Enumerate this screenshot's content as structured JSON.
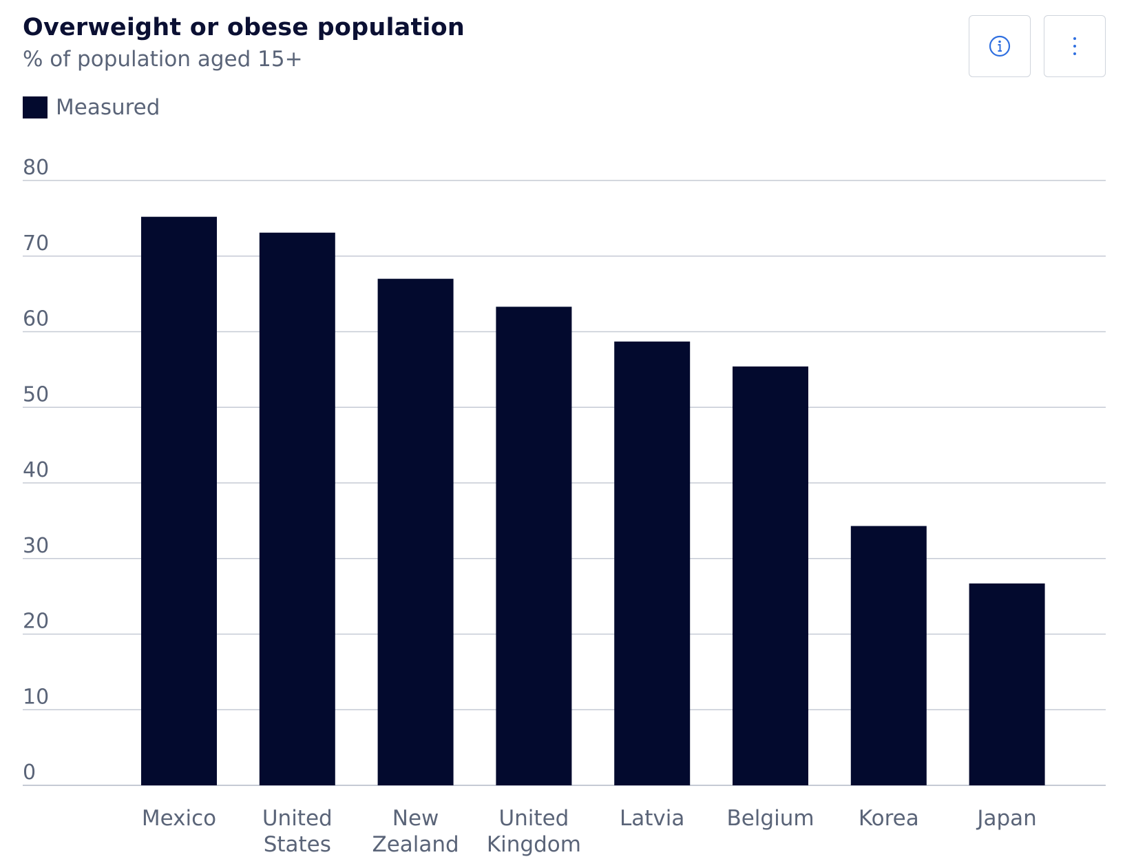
{
  "header": {
    "title": "Overweight or obese population",
    "subtitle": "% of population aged 15+"
  },
  "toolbar": {
    "info_icon": "info-icon",
    "more_icon": "more-vertical-icon"
  },
  "colors": {
    "bar": "#030a2e",
    "grid": "#c5cad4",
    "text": "#5a6478",
    "accent": "#2f6fe0"
  },
  "chart_data": {
    "type": "bar",
    "title": "Overweight or obese population",
    "subtitle": "% of population aged 15+",
    "legend": [
      "Measured"
    ],
    "legend_position": "top-left",
    "categories": [
      [
        "Mexico"
      ],
      [
        "United",
        "States"
      ],
      [
        "New",
        "Zealand"
      ],
      [
        "United",
        "Kingdom"
      ],
      [
        "Latvia"
      ],
      [
        "Belgium"
      ],
      [
        "Korea"
      ],
      [
        "Japan"
      ]
    ],
    "series": [
      {
        "name": "Measured",
        "values": [
          75.2,
          73.1,
          67.0,
          63.3,
          58.7,
          55.4,
          34.3,
          26.7
        ]
      }
    ],
    "yticks": [
      0,
      10,
      20,
      30,
      40,
      50,
      60,
      70,
      80
    ],
    "ylim": [
      0,
      80
    ],
    "grid": true
  }
}
